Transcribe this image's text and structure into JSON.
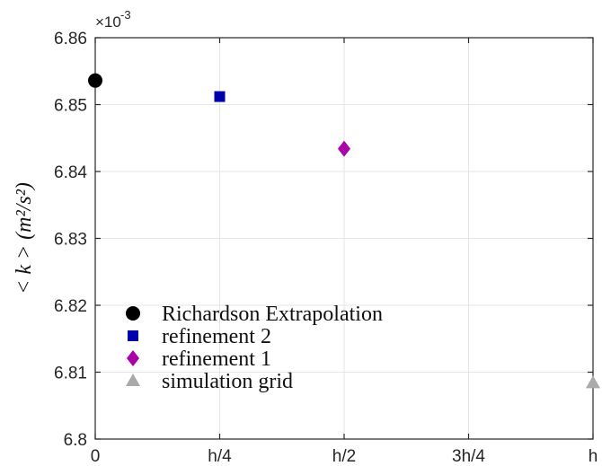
{
  "chart_data": {
    "type": "scatter",
    "ylabel": "< k > (m²/s²)",
    "y_multiplier": "×10",
    "y_exponent": "-3",
    "ylim": [
      6.8,
      6.86
    ],
    "yticks": [
      {
        "value": 6.8,
        "label": "6.8"
      },
      {
        "value": 6.81,
        "label": "6.81"
      },
      {
        "value": 6.82,
        "label": "6.82"
      },
      {
        "value": 6.83,
        "label": "6.83"
      },
      {
        "value": 6.84,
        "label": "6.84"
      },
      {
        "value": 6.85,
        "label": "6.85"
      },
      {
        "value": 6.86,
        "label": "6.86"
      }
    ],
    "xlim": [
      0,
      1
    ],
    "xticks": [
      {
        "value": 0,
        "label": "0"
      },
      {
        "value": 0.25,
        "label": "h/4"
      },
      {
        "value": 0.5,
        "label": "h/2"
      },
      {
        "value": 0.75,
        "label": "3h/4"
      },
      {
        "value": 1,
        "label": "h"
      }
    ],
    "grid": true,
    "legend_position": "bottom-left",
    "series": [
      {
        "name": "Richardson Extrapolation",
        "marker": "circle",
        "color": "#000000",
        "x": 0,
        "y": 6.8536
      },
      {
        "name": "refinement 2",
        "marker": "square",
        "color": "#0000aa",
        "x": 0.25,
        "y": 6.8512
      },
      {
        "name": "refinement 1",
        "marker": "diamond",
        "color": "#aa00aa",
        "x": 0.5,
        "y": 6.8434
      },
      {
        "name": "simulation grid",
        "marker": "triangle",
        "color": "#aaaaaa",
        "x": 1,
        "y": 6.8084
      }
    ]
  }
}
